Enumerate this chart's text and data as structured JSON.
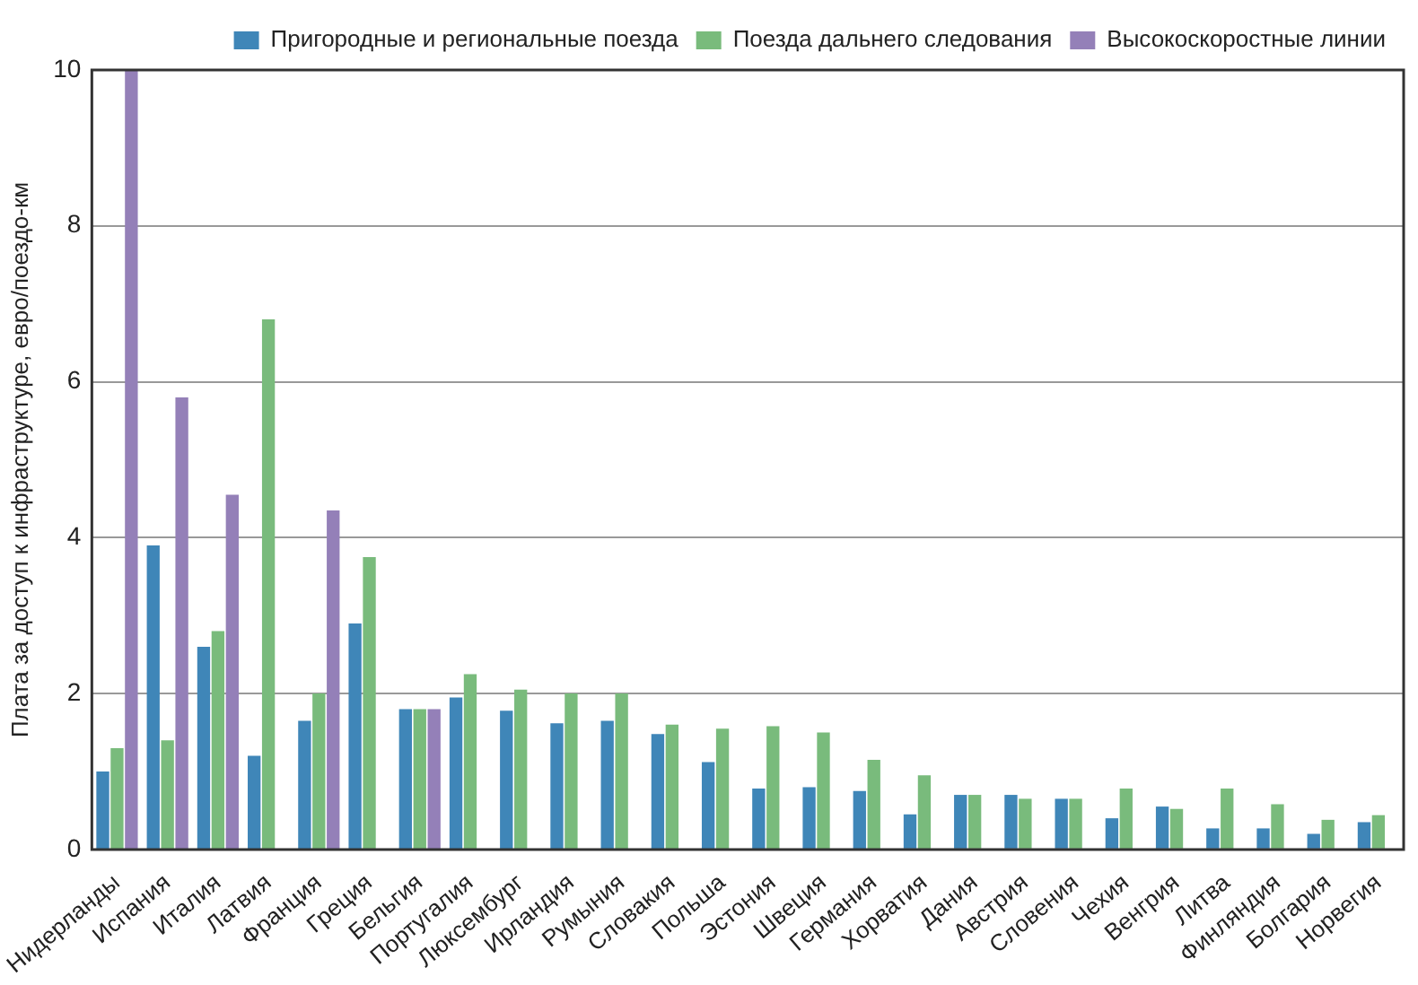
{
  "chart_data": {
    "type": "bar",
    "ylabel": "Плата за доступ к инфраструктуре, евро/поездо-км",
    "categories": [
      "Нидерланды",
      "Испания",
      "Италия",
      "Латвия",
      "Франция",
      "Греция",
      "Бельгия",
      "Португалия",
      "Люксембург",
      "Ирландия",
      "Румыния",
      "Словакия",
      "Польша",
      "Эстония",
      "Швеция",
      "Германия",
      "Хорватия",
      "Дания",
      "Австрия",
      "Словения",
      "Чехия",
      "Венгрия",
      "Литва",
      "Финляндия",
      "Болгария",
      "Норвегия"
    ],
    "series": [
      {
        "name": "Пригородные и региональные поезда",
        "color": "#3f86b8",
        "values": [
          1.0,
          3.9,
          2.6,
          1.2,
          1.65,
          2.9,
          1.8,
          1.95,
          1.78,
          1.62,
          1.65,
          1.48,
          1.12,
          0.78,
          0.8,
          0.75,
          0.45,
          0.7,
          0.7,
          0.65,
          0.4,
          0.55,
          0.27,
          0.27,
          0.2,
          0.35
        ]
      },
      {
        "name": "Поезда дальнего следования",
        "color": "#79bb7c",
        "values": [
          1.3,
          1.4,
          2.8,
          6.8,
          2.0,
          3.75,
          1.8,
          2.25,
          2.05,
          2.0,
          2.0,
          1.6,
          1.55,
          1.58,
          1.5,
          1.15,
          0.95,
          0.7,
          0.65,
          0.65,
          0.78,
          0.52,
          0.78,
          0.58,
          0.38,
          0.44
        ]
      },
      {
        "name": "Высокоскоростные линии",
        "color": "#9480b8",
        "values": [
          10,
          5.8,
          4.55,
          null,
          4.35,
          null,
          1.8,
          null,
          null,
          null,
          null,
          null,
          null,
          null,
          null,
          null,
          null,
          null,
          null,
          null,
          null,
          null,
          null,
          null,
          null,
          null
        ]
      }
    ],
    "ylim": [
      0,
      10
    ],
    "yticks": [
      0,
      2,
      4,
      6,
      8,
      10
    ],
    "grid": "y",
    "legend": "top right"
  }
}
